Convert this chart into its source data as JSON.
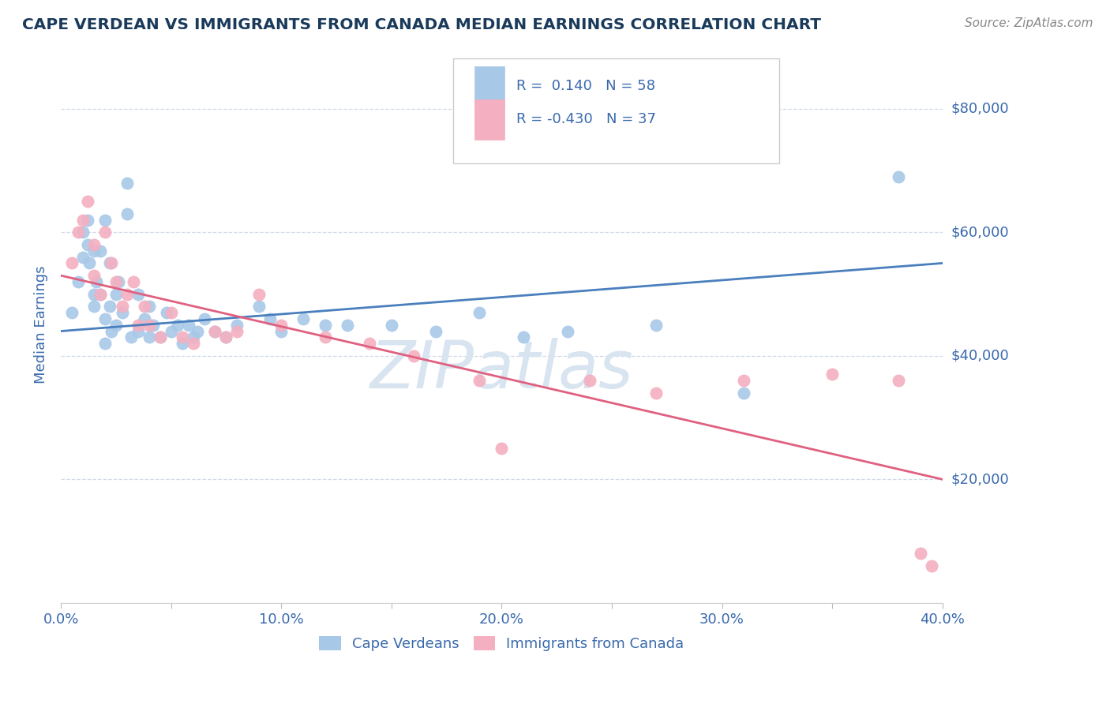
{
  "title": "CAPE VERDEAN VS IMMIGRANTS FROM CANADA MEDIAN EARNINGS CORRELATION CHART",
  "source_text": "Source: ZipAtlas.com",
  "ylabel": "Median Earnings",
  "xlim": [
    0.0,
    0.4
  ],
  "ylim": [
    0,
    90000
  ],
  "yticks": [
    0,
    20000,
    40000,
    60000,
    80000
  ],
  "ytick_labels": [
    "",
    "$20,000",
    "$40,000",
    "$60,000",
    "$80,000"
  ],
  "xticks": [
    0.0,
    0.05,
    0.1,
    0.15,
    0.2,
    0.25,
    0.3,
    0.35,
    0.4
  ],
  "xtick_labels": [
    "0.0%",
    "",
    "10.0%",
    "",
    "20.0%",
    "",
    "30.0%",
    "",
    "40.0%"
  ],
  "legend_labels": [
    "Cape Verdeans",
    "Immigrants from Canada"
  ],
  "r_blue": 0.14,
  "n_blue": 58,
  "r_pink": -0.43,
  "n_pink": 37,
  "blue_color": "#a8c8e8",
  "pink_color": "#f4afc0",
  "blue_line_color": "#4a7fbd",
  "pink_line_color": "#e06080",
  "title_color": "#1a3a5c",
  "axis_label_color": "#3a6aad",
  "tick_color": "#3a6aad",
  "grid_color": "#d0d8e8",
  "watermark_color": "#d8e4f0",
  "blue_scatter_x": [
    0.005,
    0.008,
    0.01,
    0.01,
    0.012,
    0.012,
    0.013,
    0.015,
    0.015,
    0.015,
    0.016,
    0.018,
    0.018,
    0.02,
    0.02,
    0.02,
    0.022,
    0.022,
    0.023,
    0.025,
    0.025,
    0.026,
    0.028,
    0.03,
    0.03,
    0.032,
    0.035,
    0.035,
    0.038,
    0.04,
    0.04,
    0.042,
    0.045,
    0.048,
    0.05,
    0.053,
    0.055,
    0.058,
    0.06,
    0.062,
    0.065,
    0.07,
    0.075,
    0.08,
    0.09,
    0.095,
    0.1,
    0.11,
    0.12,
    0.13,
    0.15,
    0.17,
    0.19,
    0.21,
    0.23,
    0.27,
    0.31,
    0.38
  ],
  "blue_scatter_y": [
    47000,
    52000,
    56000,
    60000,
    62000,
    58000,
    55000,
    50000,
    57000,
    48000,
    52000,
    57000,
    50000,
    62000,
    46000,
    42000,
    55000,
    48000,
    44000,
    50000,
    45000,
    52000,
    47000,
    63000,
    68000,
    43000,
    44000,
    50000,
    46000,
    43000,
    48000,
    45000,
    43000,
    47000,
    44000,
    45000,
    42000,
    45000,
    43000,
    44000,
    46000,
    44000,
    43000,
    45000,
    48000,
    46000,
    44000,
    46000,
    45000,
    45000,
    45000,
    44000,
    47000,
    43000,
    44000,
    45000,
    34000,
    69000
  ],
  "pink_scatter_x": [
    0.005,
    0.008,
    0.01,
    0.012,
    0.015,
    0.015,
    0.018,
    0.02,
    0.023,
    0.025,
    0.028,
    0.03,
    0.033,
    0.035,
    0.038,
    0.04,
    0.045,
    0.05,
    0.055,
    0.06,
    0.07,
    0.075,
    0.08,
    0.09,
    0.1,
    0.12,
    0.14,
    0.16,
    0.19,
    0.2,
    0.24,
    0.27,
    0.31,
    0.35,
    0.38,
    0.39,
    0.395
  ],
  "pink_scatter_y": [
    55000,
    60000,
    62000,
    65000,
    58000,
    53000,
    50000,
    60000,
    55000,
    52000,
    48000,
    50000,
    52000,
    45000,
    48000,
    45000,
    43000,
    47000,
    43000,
    42000,
    44000,
    43000,
    44000,
    50000,
    45000,
    43000,
    42000,
    40000,
    36000,
    25000,
    36000,
    34000,
    36000,
    37000,
    36000,
    8000,
    6000
  ],
  "blue_trend_x": [
    0.0,
    0.4
  ],
  "blue_trend_y": [
    44000,
    55000
  ],
  "pink_trend_x": [
    0.0,
    0.4
  ],
  "pink_trend_y": [
    53000,
    20000
  ]
}
